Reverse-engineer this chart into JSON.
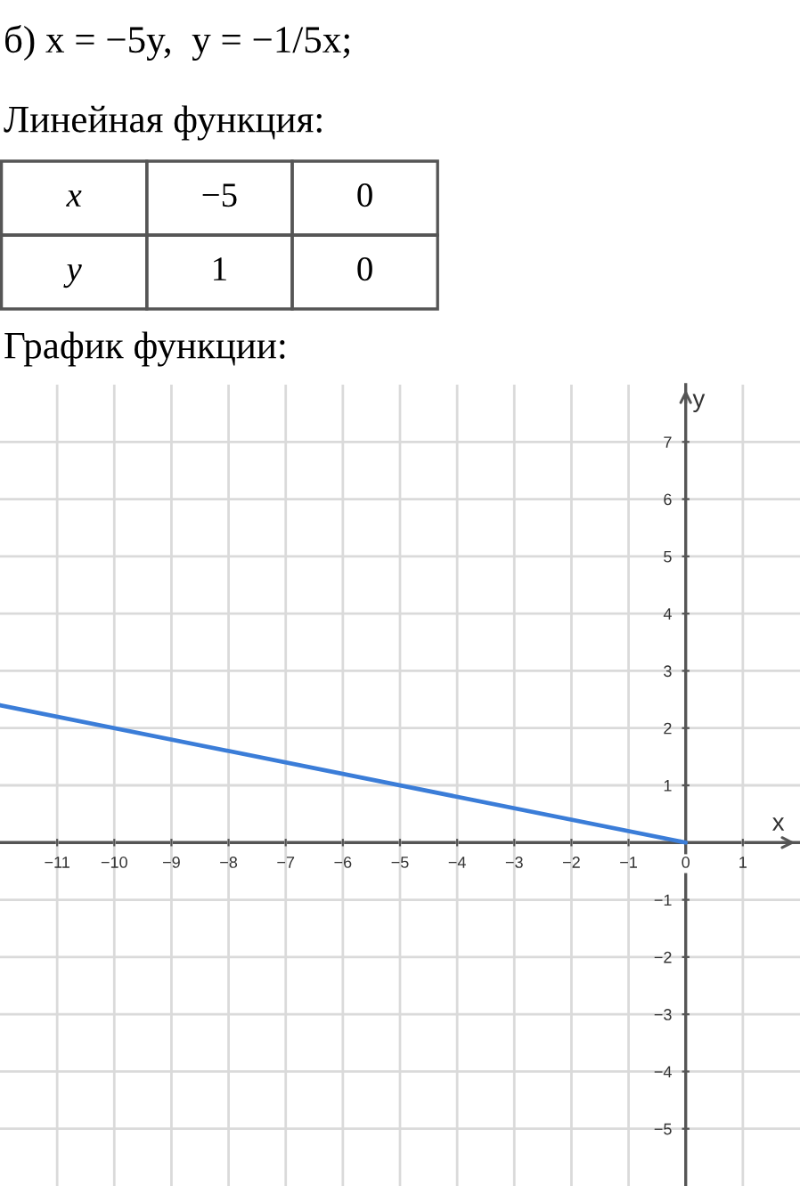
{
  "chart_data": [
    {
      "type": "other",
      "title": "б) x = −5y,  y = −1/5x;",
      "subtitle": "Линейная функция:",
      "annotations": [
        "x",
        "−5",
        "0",
        "y",
        "1",
        "0"
      ]
    },
    {
      "type": "line",
      "title": "График функции:",
      "xlabel": "x",
      "ylabel": "y",
      "x": [
        -12,
        0
      ],
      "series": [
        {
          "color": "#3b7dd8",
          "values": [
            2.4,
            0
          ]
        }
      ],
      "xlim": [
        -12,
        2
      ],
      "ylim": [
        -6,
        8
      ],
      "xticks": [
        -11,
        -10,
        -9,
        -8,
        -7,
        -6,
        -5,
        -4,
        -3,
        -2,
        -1,
        0,
        1
      ],
      "yticks": [
        -5,
        -4,
        -3,
        -2,
        -1,
        1,
        2,
        3,
        4,
        5,
        6,
        7
      ],
      "grid": true
    }
  ]
}
